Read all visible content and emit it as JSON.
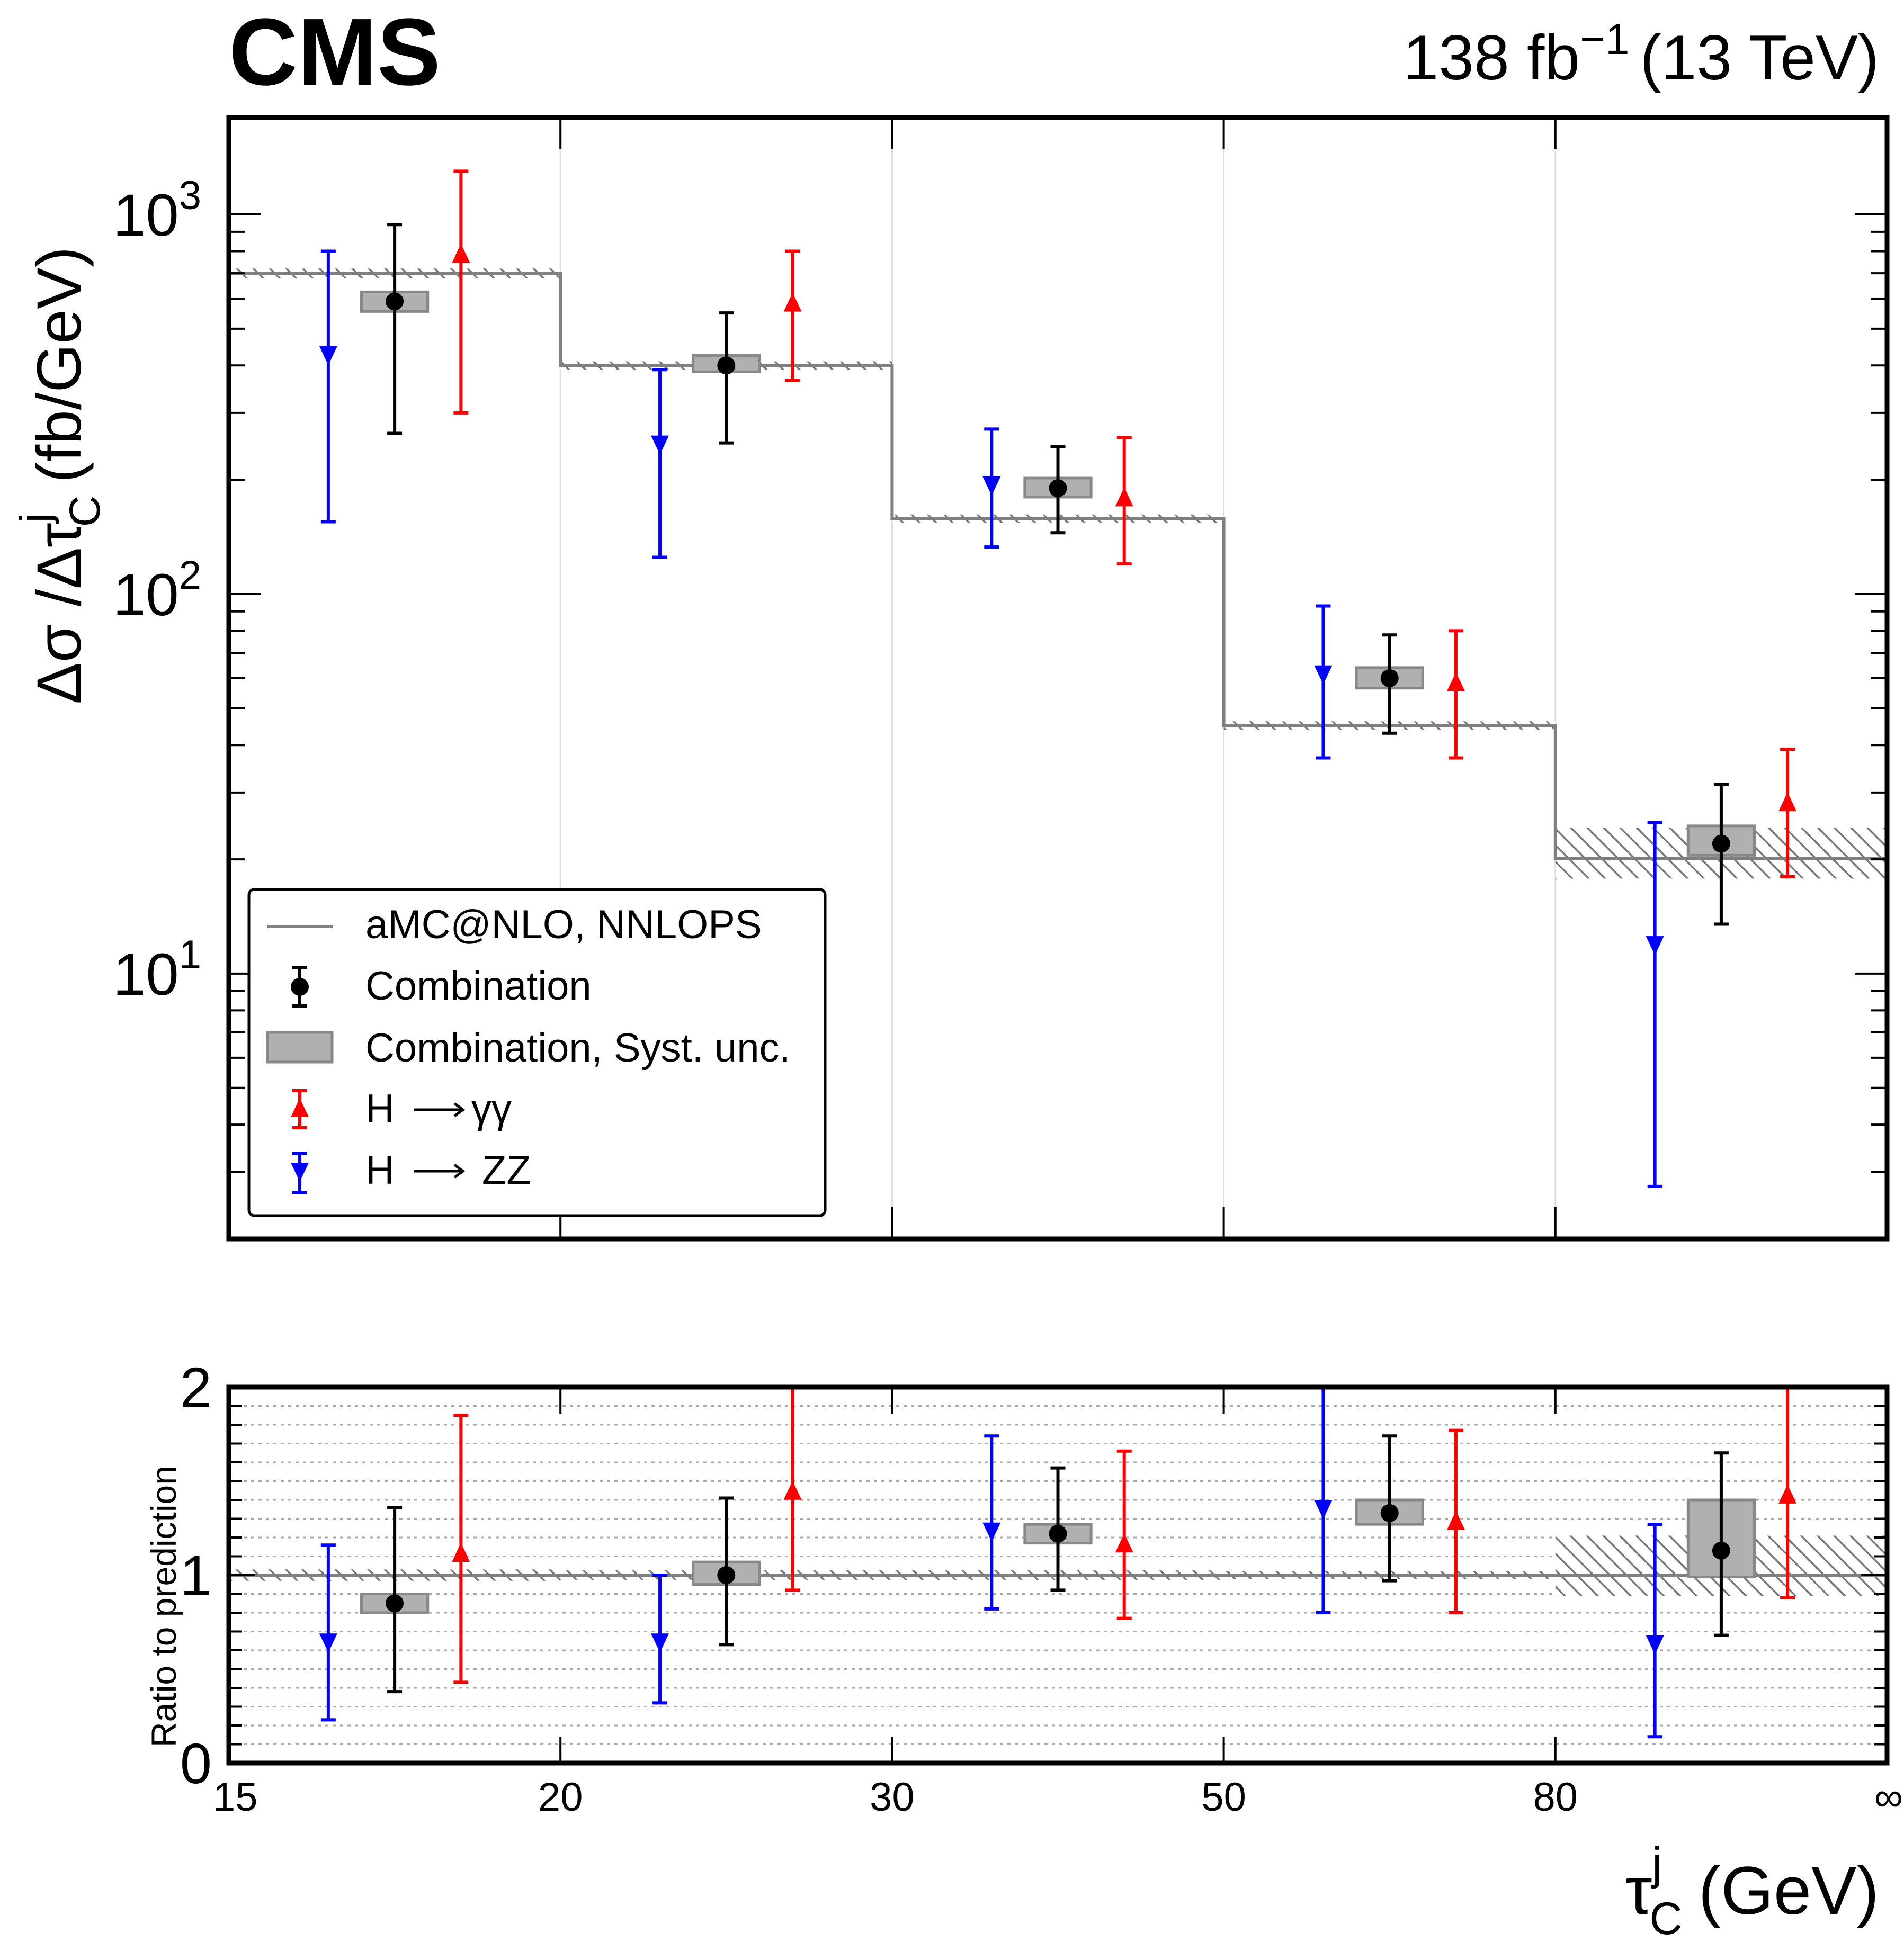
{
  "header": {
    "experiment": "CMS",
    "lumi_label": "138 fb",
    "lumi_exp": "−1",
    "energy_label": "(13 TeV)"
  },
  "axes": {
    "upper_ylabel_main": "Δσ /Δτ",
    "upper_ylabel_sup": "j",
    "upper_ylabel_sub": "C",
    "upper_ylabel_unit": "(fb/GeV)",
    "lower_ylabel": "Ratio to prediction",
    "xlabel_main": "τ",
    "xlabel_sup": "j",
    "xlabel_sub": "C",
    "xlabel_unit": "(GeV)",
    "x_ticks": [
      "15",
      "20",
      "30",
      "50",
      "80",
      "∞"
    ],
    "upper_y_ticks": [
      {
        "base": "10",
        "exp": "1",
        "value": 10
      },
      {
        "base": "10",
        "exp": "2",
        "value": 100
      },
      {
        "base": "10",
        "exp": "3",
        "value": 1000
      }
    ],
    "lower_y_ticks": [
      "0",
      "1",
      "2"
    ]
  },
  "legend": {
    "items": [
      {
        "key": "prediction",
        "label": "aMC@NLO, NNLOPS"
      },
      {
        "key": "combination",
        "label": "Combination"
      },
      {
        "key": "syst",
        "label": "Combination, Syst. unc."
      },
      {
        "key": "hgg",
        "label_prefix": "H",
        "label_suffix": "γγ"
      },
      {
        "key": "hzz",
        "label_prefix": "H",
        "label_suffix": "ZZ"
      }
    ]
  },
  "colors": {
    "combination": "#000000",
    "hgg": "#ff0000",
    "hzz": "#0000ff",
    "prediction": "#808080",
    "syst_fill": "#b0b0b0"
  },
  "chart_data": [
    {
      "panel": "upper",
      "type": "line",
      "log_y": true,
      "ylim": [
        2,
        1800
      ],
      "bins": [
        [
          15,
          20
        ],
        [
          20,
          30
        ],
        [
          30,
          50
        ],
        [
          50,
          80
        ],
        [
          80,
          "inf"
        ]
      ],
      "bin_index_range": [
        0,
        5
      ],
      "prediction": {
        "values": [
          700,
          400,
          158,
          45,
          20.1
        ],
        "band_low": [
          680,
          390,
          154,
          43.8,
          17.8
        ],
        "band_high": [
          720,
          410,
          162,
          46.2,
          24.2
        ]
      },
      "combination": {
        "values": [
          590,
          400,
          190,
          60,
          22
        ],
        "err_low": [
          265,
          250,
          145,
          43,
          13.5
        ],
        "err_high": [
          940,
          550,
          245,
          78,
          31.5
        ],
        "syst_low": [
          555,
          385,
          180,
          56.5,
          20.5
        ],
        "syst_high": [
          625,
          425,
          202,
          64,
          24.5
        ]
      },
      "hgg": {
        "values": [
          780,
          580,
          178,
          58,
          28
        ],
        "err_low": [
          300,
          365,
          120,
          37,
          18
        ],
        "err_high": [
          1300,
          800,
          258,
          80,
          39
        ]
      },
      "hzz": {
        "values": [
          430,
          250,
          195,
          62,
          12
        ],
        "err_low": [
          155,
          125,
          133,
          37,
          2.75
        ],
        "err_high": [
          800,
          390,
          272,
          93,
          25
        ]
      }
    },
    {
      "panel": "lower",
      "type": "line",
      "ylim": [
        0,
        2
      ],
      "grid": true,
      "bins": [
        [
          15,
          20
        ],
        [
          20,
          30
        ],
        [
          30,
          50
        ],
        [
          50,
          80
        ],
        [
          80,
          "inf"
        ]
      ],
      "prediction": {
        "values": [
          1,
          1,
          1,
          1,
          1
        ],
        "band_low": [
          0.97,
          0.975,
          0.975,
          0.98,
          0.89
        ],
        "band_high": [
          1.03,
          1.025,
          1.025,
          1.02,
          1.21
        ]
      },
      "combination": {
        "values": [
          0.85,
          1.0,
          1.22,
          1.33,
          1.13
        ],
        "err_low": [
          0.38,
          0.63,
          0.92,
          0.97,
          0.68
        ],
        "err_high": [
          1.36,
          1.41,
          1.57,
          1.74,
          1.65
        ],
        "syst_low": [
          0.8,
          0.95,
          1.17,
          1.27,
          0.99
        ],
        "syst_high": [
          0.9,
          1.07,
          1.27,
          1.4,
          1.4
        ]
      },
      "hgg": {
        "values": [
          1.11,
          1.44,
          1.16,
          1.28,
          1.42
        ],
        "err_low": [
          0.43,
          0.92,
          0.77,
          0.8,
          0.88
        ],
        "err_high": [
          1.85,
          2.0,
          1.66,
          1.77,
          2.0
        ]
      },
      "hzz": {
        "values": [
          0.65,
          0.65,
          1.24,
          1.36,
          0.64
        ],
        "err_low": [
          0.23,
          0.32,
          0.82,
          0.8,
          0.14
        ],
        "err_high": [
          1.16,
          1.0,
          1.74,
          2.0,
          1.27
        ]
      }
    }
  ]
}
